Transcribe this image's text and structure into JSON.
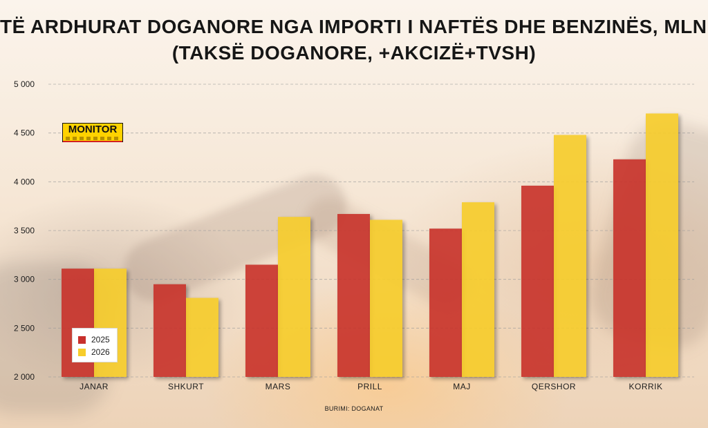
{
  "chart_data": {
    "type": "bar",
    "title_lines": [
      "TË ARDHURAT DOGANORE NGA IMPORTI I NAFTËS DHE BENZINËS, MLN LEKË",
      "(TAKSË DOGANORE, +AKCIZË+TVSH)"
    ],
    "categories": [
      "JANAR",
      "SHKURT",
      "MARS",
      "PRILL",
      "MAJ",
      "QERSHOR",
      "KORRIK"
    ],
    "series": [
      {
        "name": "2025",
        "color": "#c8302c",
        "values": [
          3110,
          2950,
          3150,
          3670,
          3520,
          3960,
          4230
        ]
      },
      {
        "name": "2026",
        "color": "#f7cd2b",
        "values": [
          3110,
          2810,
          3640,
          3610,
          3790,
          4480,
          4700
        ]
      }
    ],
    "y_ticks": [
      "2 000",
      "2 500",
      "3 000",
      "3 500",
      "4 000",
      "4 500",
      "5 000"
    ],
    "ylim": [
      2000,
      5000
    ],
    "grid": true,
    "legend_position": "bottom-left",
    "source": "BURIMI: DOGANAT"
  },
  "logo": {
    "text": "MONITOR",
    "bg": "#ffd200",
    "accent": "#d21f1f"
  }
}
